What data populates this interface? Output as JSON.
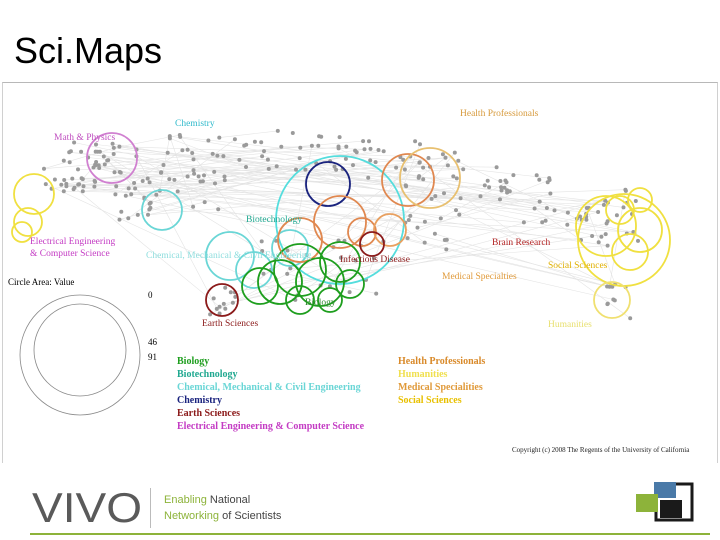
{
  "slide": {
    "title": "Sci.Maps"
  },
  "map": {
    "nodes": {
      "math_physics": {
        "label": "Math & Physics",
        "color": "#c050c0"
      },
      "chemistry": {
        "label": "Chemistry",
        "color": "#1a237e"
      },
      "health_professionals_top": {
        "label": "Health Professionals",
        "color": "#d79a3c"
      },
      "electrical": {
        "label": "Electrical Engineering & Computer Science",
        "line1": "Electrical Engineering",
        "line2": "& Computer Science",
        "color": "#c43cc4"
      },
      "chemical": {
        "label": "Chemical, Mechanical & Civil Engineering",
        "short": "Chemical, Mechanical & Civil Engineering",
        "color": "#33cccc"
      },
      "biotechnology": {
        "label": "Biotechnology",
        "color": "#20b0a0"
      },
      "infectious": {
        "label": "Infectious Disease",
        "color": "#8b1a1a"
      },
      "brain": {
        "label": "Brain Research",
        "color": "#b22222"
      },
      "social": {
        "label": "Social Sciences",
        "color": "#e0b000"
      },
      "medical": {
        "label": "Medical Specialties",
        "color": "#e09a3a"
      },
      "earth": {
        "label": "Earth Sciences",
        "color": "#8b1a1a"
      },
      "biology": {
        "label": "Biology",
        "color": "#008800"
      },
      "humanities": {
        "label": "Humanities",
        "color": "#e8e070"
      }
    },
    "size_legend": {
      "title": "Circle Area: Value",
      "values": [
        "0",
        "46",
        "91"
      ]
    },
    "legend_left": [
      {
        "label": "Biology",
        "color": "#1e9e1e"
      },
      {
        "label": "Biotechnology",
        "color": "#20a890"
      },
      {
        "label": "Chemical, Mechanical & Civil Engineering",
        "color": "#6ad6d6"
      },
      {
        "label": "Chemistry",
        "color": "#1a237e"
      },
      {
        "label": "Earth Sciences",
        "color": "#8b1a1a"
      },
      {
        "label": "Electrical Engineering & Computer Science",
        "color": "#c43cc4"
      }
    ],
    "legend_right": [
      {
        "label": "Health Professionals",
        "color": "#d98a2a"
      },
      {
        "label": "Humanities",
        "color": "#f0e050"
      },
      {
        "label": "Medical Specialities",
        "color": "#e09a3a"
      },
      {
        "label": "Social Sciences",
        "color": "#e8c000"
      }
    ],
    "copyright": "Copyright (c) 2008 The Regents of the University of California"
  },
  "footer": {
    "logo_text": "VIVO",
    "tagline1_a": "Enabling",
    "tagline1_b": " National",
    "tagline2_a": "Networking",
    "tagline2_b": " of Scientists",
    "accent": "#8db33a"
  }
}
